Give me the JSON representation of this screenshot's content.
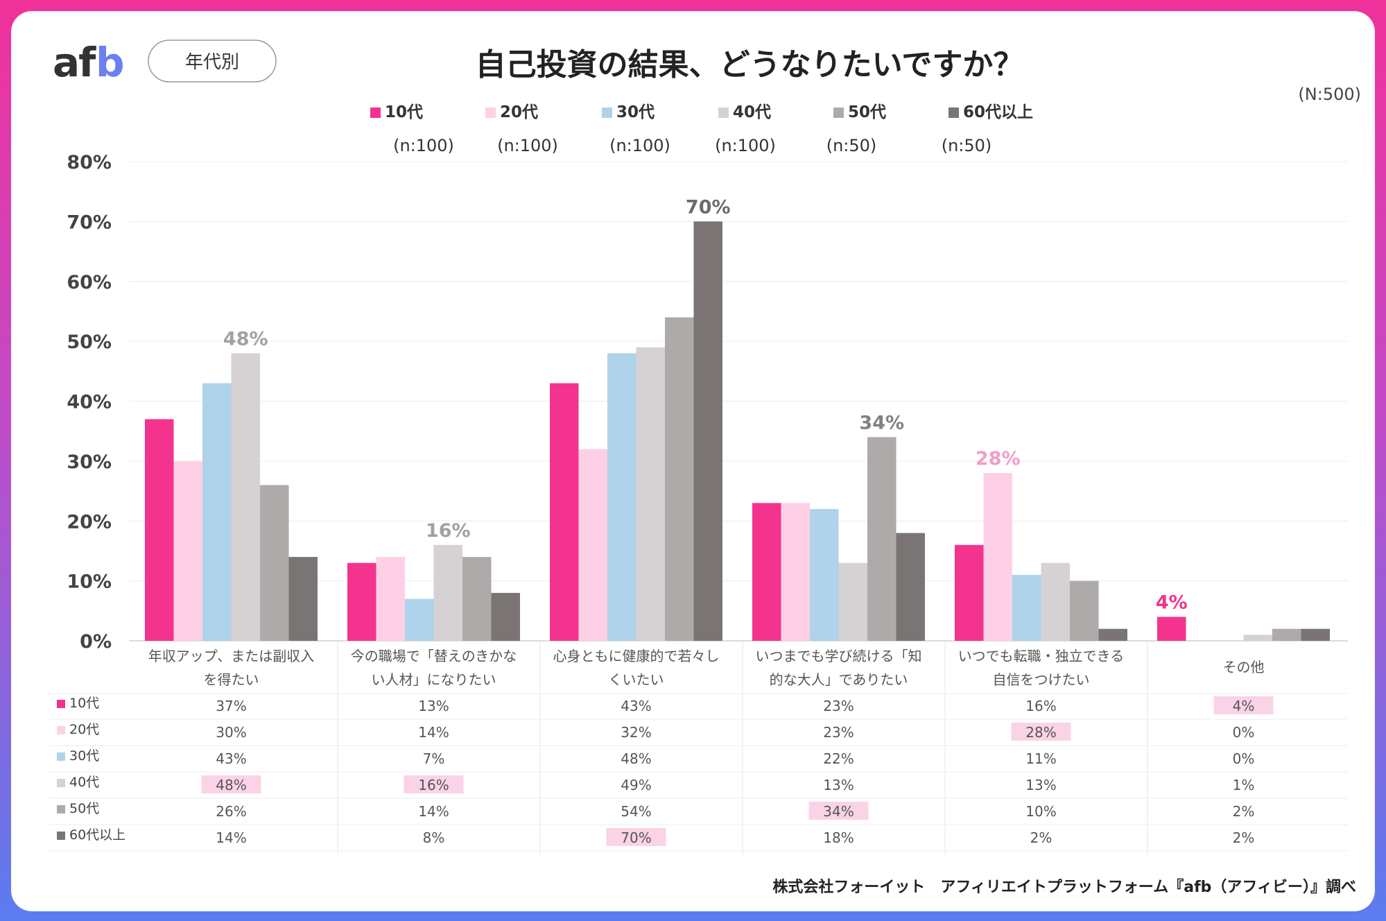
{
  "brand": {
    "logo_text": "afb"
  },
  "header": {
    "badge": "年代別",
    "title": "自己投資の結果、どうなりたいですか？",
    "total_n": "(N:500)"
  },
  "legend": [
    {
      "name": "10代",
      "n": "(n:100)",
      "color": "#f4338e"
    },
    {
      "name": "20代",
      "n": "(n:100)",
      "color": "#fdd0e6"
    },
    {
      "name": "30代",
      "n": "(n:100)",
      "color": "#aed3ea"
    },
    {
      "name": "40代",
      "n": "(n:100)",
      "color": "#d6d2d3"
    },
    {
      "name": "50代",
      "n": "(n:50)",
      "color": "#aeaaa9"
    },
    {
      "name": "60代以上",
      "n": "(n:50)",
      "color": "#7a7574"
    }
  ],
  "chart_data": {
    "type": "bar",
    "ylim": [
      0,
      80
    ],
    "y_ticks": [
      "0%",
      "10%",
      "20%",
      "30%",
      "40%",
      "50%",
      "60%",
      "70%",
      "80%"
    ],
    "categories": [
      [
        "年収アップ、または副収入",
        "を得たい"
      ],
      [
        "今の職場で「替えのきかな",
        "い人材」になりたい"
      ],
      [
        "心身ともに健康的で若々し",
        "くいたい"
      ],
      [
        "いつまでも学び続ける「知",
        "的な大人」でありたい"
      ],
      [
        "いつでも転職・独立できる",
        "自信をつけたい"
      ],
      [
        "その他"
      ]
    ],
    "series": [
      {
        "name": "10代",
        "values": [
          37,
          13,
          43,
          23,
          16,
          4
        ]
      },
      {
        "name": "20代",
        "values": [
          30,
          14,
          32,
          23,
          28,
          0
        ]
      },
      {
        "name": "30代",
        "values": [
          43,
          7,
          48,
          22,
          11,
          0
        ]
      },
      {
        "name": "40代",
        "values": [
          48,
          16,
          49,
          13,
          13,
          1
        ]
      },
      {
        "name": "50代",
        "values": [
          26,
          14,
          54,
          34,
          10,
          2
        ]
      },
      {
        "name": "60代以上",
        "values": [
          14,
          8,
          70,
          18,
          2,
          2
        ]
      }
    ],
    "peak_labels": [
      {
        "category": 0,
        "series": 3,
        "text": "48%",
        "color": "#a3a0a0"
      },
      {
        "category": 1,
        "series": 3,
        "text": "16%",
        "color": "#a3a0a0"
      },
      {
        "category": 2,
        "series": 5,
        "text": "70%",
        "color": "#6e6a69"
      },
      {
        "category": 3,
        "series": 4,
        "text": "34%",
        "color": "#858180"
      },
      {
        "category": 4,
        "series": 1,
        "text": "28%",
        "color": "#f19dc8"
      },
      {
        "category": 5,
        "series": 0,
        "text": "4%",
        "color": "#f4338e"
      }
    ],
    "table": {
      "rows": [
        {
          "label": "10代",
          "values": [
            "37%",
            "13%",
            "43%",
            "23%",
            "16%",
            "4%"
          ]
        },
        {
          "label": "20代",
          "values": [
            "30%",
            "14%",
            "32%",
            "23%",
            "28%",
            "0%"
          ]
        },
        {
          "label": "30代",
          "values": [
            "43%",
            "7%",
            "48%",
            "22%",
            "11%",
            "0%"
          ]
        },
        {
          "label": "40代",
          "values": [
            "48%",
            "16%",
            "49%",
            "13%",
            "13%",
            "1%"
          ]
        },
        {
          "label": "50代",
          "values": [
            "26%",
            "14%",
            "54%",
            "34%",
            "10%",
            "2%"
          ]
        },
        {
          "label": "60代以上",
          "values": [
            "14%",
            "8%",
            "70%",
            "18%",
            "2%",
            "2%"
          ]
        }
      ]
    }
  },
  "footer": {
    "source": "株式会社フォーイット　アフィリエイトプラットフォーム『afb（アフィビー）』調べ"
  },
  "colors": {
    "highlight": "#fbd3e6",
    "grid": "#ececec"
  }
}
